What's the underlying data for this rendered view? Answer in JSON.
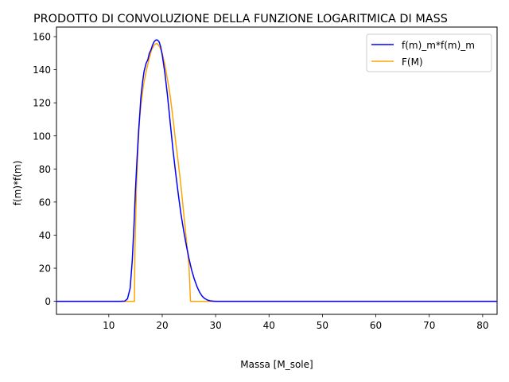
{
  "chart_data": {
    "type": "line",
    "title": "PRODOTTO DI CONVOLUZIONE DELLA FUNZIONE LOGARITMICA DI MASS",
    "xlabel": "Massa [M_sole]",
    "ylabel": "f(m)*f(m)",
    "xlim": [
      0.2,
      82.7
    ],
    "ylim": [
      -7.9,
      165.8
    ],
    "xticks": [
      10,
      20,
      30,
      40,
      50,
      60,
      70,
      80
    ],
    "yticks": [
      0,
      20,
      40,
      60,
      80,
      100,
      120,
      140,
      160
    ],
    "grid": false,
    "legend_position": "top-right",
    "series": [
      {
        "name": "f(m)_m*f(m)_m",
        "color": "#0000ff",
        "x": [
          0.2,
          5,
          10,
          12,
          13,
          13.5,
          14,
          14.4,
          14.7,
          15,
          15.3,
          15.6,
          15.8,
          16,
          16.3,
          16.6,
          17,
          17.3,
          17.6,
          17.9,
          18.2,
          18.5,
          18.8,
          19.1,
          19.4,
          19.7,
          20,
          20.5,
          21,
          21.5,
          22,
          22.5,
          23,
          23.5,
          24,
          24.5,
          25,
          25.5,
          26,
          26.5,
          27,
          27.5,
          28,
          28.5,
          29,
          29.5,
          30,
          40,
          60,
          82.7
        ],
        "y": [
          0,
          0,
          0,
          0,
          0.1,
          1.5,
          8,
          25,
          45,
          68,
          87,
          104,
          113,
          123,
          132,
          139,
          144,
          146,
          150,
          152,
          155,
          157,
          158,
          158,
          157,
          154,
          149,
          138,
          124,
          108,
          92,
          78,
          65,
          53,
          43,
          34,
          26,
          19,
          13.5,
          9,
          5.5,
          3,
          1.6,
          0.7,
          0.3,
          0.1,
          0,
          0,
          0,
          0
        ]
      },
      {
        "name": "F(M)",
        "color": "#ffa500",
        "x": [
          0.2,
          5,
          10,
          14.8,
          14.9,
          15.2,
          15.5,
          15.8,
          16.1,
          16.5,
          17,
          17.5,
          18,
          18.5,
          19,
          19.5,
          20,
          20.5,
          21,
          21.5,
          22,
          22.5,
          23,
          23.5,
          24,
          24.5,
          25,
          25.3,
          26,
          30,
          40,
          60,
          82.7
        ],
        "y": [
          0,
          0,
          0,
          0,
          33,
          72,
          95,
          112,
          121,
          131,
          139,
          146,
          152,
          155,
          156,
          154,
          150,
          143,
          134,
          124,
          111,
          97,
          84,
          70,
          54,
          38,
          22,
          0,
          0,
          0,
          0,
          0,
          0
        ]
      }
    ]
  }
}
